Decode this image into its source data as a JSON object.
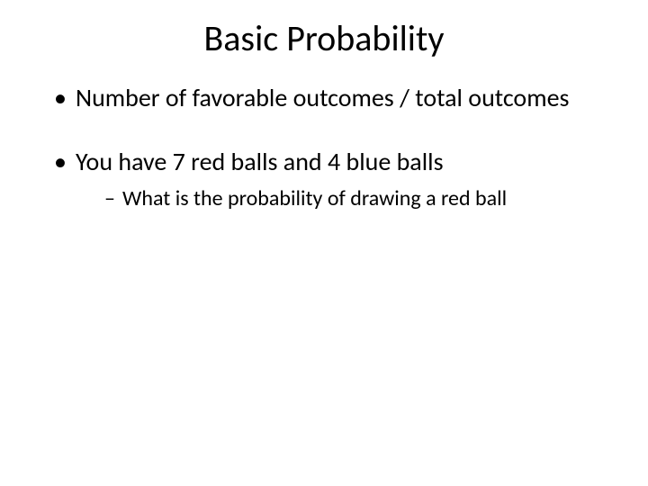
{
  "slide": {
    "background_color": "#ffffff",
    "text_color": "#000000",
    "font_family": "Calibri, Arial, sans-serif",
    "title": {
      "text": "Basic Probability",
      "fontsize": 40,
      "align": "center"
    },
    "bullets": [
      {
        "text": "Number of favorable outcomes / total outcomes",
        "fontsize": 28,
        "children": []
      },
      {
        "text": " You have 7 red balls and 4 blue balls",
        "fontsize": 28,
        "children": [
          {
            "text": "What is the probability of drawing a red ball",
            "fontsize": 24
          }
        ]
      }
    ]
  }
}
